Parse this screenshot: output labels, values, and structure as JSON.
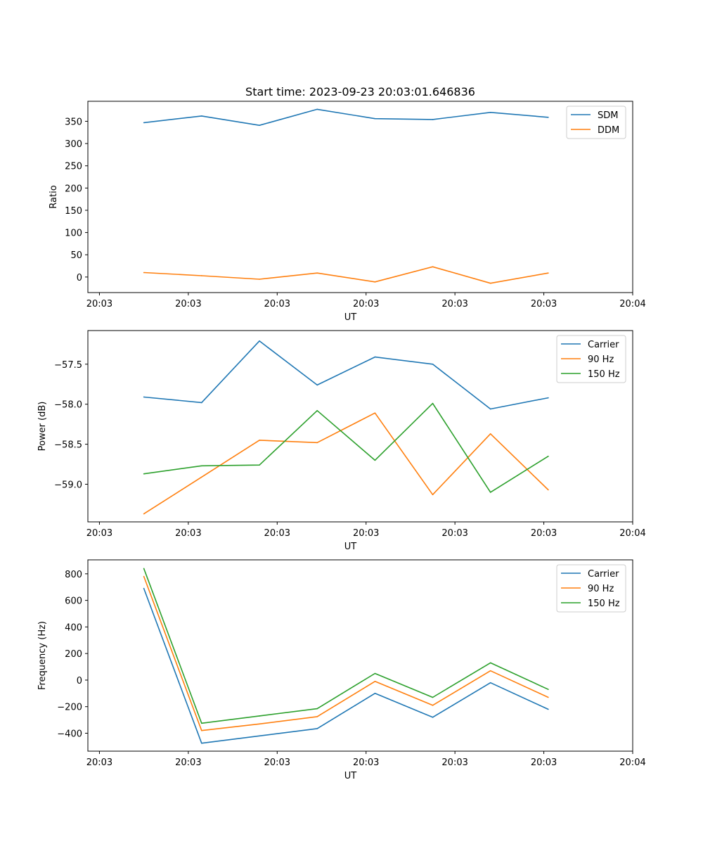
{
  "chart_data": [
    {
      "type": "line",
      "title": "Start time: 2023-09-23 20:03:01.646836",
      "xlabel": "UT",
      "ylabel": "Ratio",
      "x_ticks": [
        "20:03",
        "20:03",
        "20:03",
        "20:03",
        "20:03",
        "20:03",
        "20:04"
      ],
      "x_tick_positions": [
        0,
        1,
        2,
        3,
        4,
        5,
        6
      ],
      "x_range": [
        -0.13,
        6.0
      ],
      "x": [
        0.5,
        1.15,
        1.8,
        2.45,
        3.1,
        3.75,
        4.4,
        5.05
      ],
      "ylim": [
        -35,
        395
      ],
      "y_ticks": [
        0,
        50,
        100,
        150,
        200,
        250,
        300,
        350
      ],
      "legend_position": "top-right",
      "series": [
        {
          "name": "SDM",
          "color": "#1f77b4",
          "values": [
            347,
            362,
            341,
            377,
            356,
            354,
            370,
            359
          ]
        },
        {
          "name": "DDM",
          "color": "#ff7f0e",
          "values": [
            10,
            3,
            -5,
            9,
            -11,
            23,
            -14,
            9
          ]
        }
      ]
    },
    {
      "type": "line",
      "title": "",
      "xlabel": "UT",
      "ylabel": "Power (dB)",
      "x_ticks": [
        "20:03",
        "20:03",
        "20:03",
        "20:03",
        "20:03",
        "20:03",
        "20:04"
      ],
      "x_tick_positions": [
        0,
        1,
        2,
        3,
        4,
        5,
        6
      ],
      "x_range": [
        -0.13,
        6.0
      ],
      "x": [
        0.5,
        1.15,
        1.8,
        2.45,
        3.1,
        3.75,
        4.4,
        5.05
      ],
      "ylim": [
        -59.47,
        -57.08
      ],
      "y_ticks": [
        -59.0,
        -58.5,
        -58.0,
        -57.5
      ],
      "y_tick_labels": [
        "−59.0",
        "−58.5",
        "−58.0",
        "−57.5"
      ],
      "legend_position": "top-right",
      "series": [
        {
          "name": "Carrier",
          "color": "#1f77b4",
          "values": [
            -57.91,
            -57.98,
            -57.21,
            -57.76,
            -57.41,
            -57.5,
            -58.06,
            -57.92
          ]
        },
        {
          "name": "90 Hz",
          "color": "#ff7f0e",
          "values": [
            -59.37,
            -58.91,
            -58.45,
            -58.48,
            -58.11,
            -59.13,
            -58.37,
            -59.07
          ]
        },
        {
          "name": "150 Hz",
          "color": "#2ca02c",
          "values": [
            -58.87,
            -58.77,
            -58.76,
            -58.08,
            -58.7,
            -57.99,
            -59.1,
            -58.65
          ]
        }
      ]
    },
    {
      "type": "line",
      "title": "",
      "xlabel": "UT",
      "ylabel": "Frequency (Hz)",
      "x_ticks": [
        "20:03",
        "20:03",
        "20:03",
        "20:03",
        "20:03",
        "20:03",
        "20:04"
      ],
      "x_tick_positions": [
        0,
        1,
        2,
        3,
        4,
        5,
        6
      ],
      "x_range": [
        -0.13,
        6.0
      ],
      "x": [
        0.5,
        1.15,
        1.8,
        2.45,
        3.1,
        3.75,
        4.4,
        5.05
      ],
      "ylim": [
        -535,
        905
      ],
      "y_ticks": [
        -400,
        -200,
        0,
        200,
        400,
        600,
        800
      ],
      "y_tick_labels": [
        "−400",
        "−200",
        "0",
        "200",
        "400",
        "600",
        "800"
      ],
      "legend_position": "top-right",
      "series": [
        {
          "name": "Carrier",
          "color": "#1f77b4",
          "values": [
            690,
            -475,
            -420,
            -365,
            -100,
            -280,
            -20,
            -220
          ]
        },
        {
          "name": "90 Hz",
          "color": "#ff7f0e",
          "values": [
            780,
            -380,
            -330,
            -275,
            -10,
            -190,
            70,
            -130
          ]
        },
        {
          "name": "150 Hz",
          "color": "#2ca02c",
          "values": [
            840,
            -325,
            -270,
            -215,
            50,
            -130,
            130,
            -70
          ]
        }
      ]
    }
  ]
}
